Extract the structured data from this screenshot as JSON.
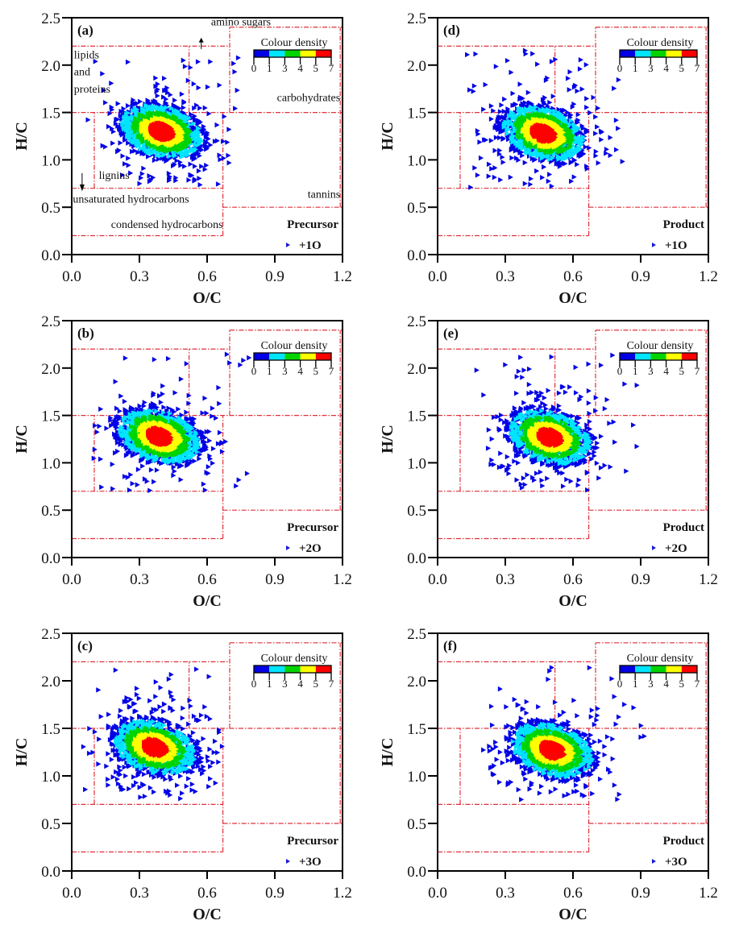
{
  "figure": {
    "colorbar": {
      "title": "Colour density",
      "ticks": [
        "0",
        "1",
        "3",
        "4",
        "5",
        "7"
      ],
      "colors": [
        "#0000e6",
        "#00e5ff",
        "#00d400",
        "#ffff00",
        "#ff0000"
      ]
    },
    "region_labels": {
      "amino_sugars": "amino sugars",
      "lipids": "lipids",
      "and": "and",
      "proteins": "proteins",
      "carbohydrates": "carbohydrates",
      "lignins": "lignins",
      "unsaturated": "unsaturated hydrocarbons",
      "condensed": "condensed hydrocarbons",
      "tannins": "tannins"
    },
    "region_color": "#e0303a",
    "marker_color": "#1a1ad6"
  },
  "chart_data": [
    {
      "type": "scatter",
      "panel": "(a)",
      "group": "Precursor",
      "series": "+1O",
      "xlabel": "O/C",
      "ylabel": "H/C",
      "xlim": [
        0,
        1.2
      ],
      "ylim": [
        0,
        2.5
      ],
      "xticks": [
        "0.0",
        "0.3",
        "0.6",
        "0.9",
        "1.2"
      ],
      "yticks": [
        "0.0",
        "0.5",
        "1.0",
        "1.5",
        "2.0",
        "2.5"
      ],
      "density_center": [
        0.4,
        1.3
      ],
      "x_range": [
        0.07,
        0.75
      ],
      "y_range": [
        0.7,
        2.15
      ],
      "show_region_labels": true
    },
    {
      "type": "scatter",
      "panel": "(b)",
      "group": "Precursor",
      "series": "+2O",
      "xlabel": "O/C",
      "ylabel": "H/C",
      "xlim": [
        0,
        1.2
      ],
      "ylim": [
        0,
        2.5
      ],
      "xticks": [
        "0.0",
        "0.3",
        "0.6",
        "0.9",
        "1.2"
      ],
      "yticks": [
        "0.0",
        "0.5",
        "1.0",
        "1.5",
        "2.0",
        "2.5"
      ],
      "density_center": [
        0.39,
        1.28
      ],
      "x_range": [
        0.07,
        0.8
      ],
      "y_range": [
        0.7,
        2.15
      ],
      "show_region_labels": false
    },
    {
      "type": "scatter",
      "panel": "(c)",
      "group": "Precursor",
      "series": "+3O",
      "xlabel": "O/C",
      "ylabel": "H/C",
      "xlim": [
        0,
        1.2
      ],
      "ylim": [
        0,
        2.5
      ],
      "xticks": [
        "0.0",
        "0.3",
        "0.6",
        "0.9",
        "1.2"
      ],
      "yticks": [
        "0.0",
        "0.5",
        "1.0",
        "1.5",
        "2.0",
        "2.5"
      ],
      "density_center": [
        0.37,
        1.3
      ],
      "x_range": [
        0.04,
        0.67
      ],
      "y_range": [
        0.75,
        2.15
      ],
      "show_region_labels": false
    },
    {
      "type": "scatter",
      "panel": "(d)",
      "group": "Product",
      "series": "+1O",
      "xlabel": "O/C",
      "ylabel": "H/C",
      "xlim": [
        0,
        1.2
      ],
      "ylim": [
        0,
        2.5
      ],
      "xticks": [
        "0.0",
        "0.3",
        "0.6",
        "0.9",
        "1.2"
      ],
      "yticks": [
        "0.0",
        "0.5",
        "1.0",
        "1.5",
        "2.0",
        "2.5"
      ],
      "density_center": [
        0.47,
        1.28
      ],
      "x_range": [
        0.12,
        0.82
      ],
      "y_range": [
        0.7,
        2.17
      ],
      "show_region_labels": false
    },
    {
      "type": "scatter",
      "panel": "(e)",
      "group": "Product",
      "series": "+2O",
      "xlabel": "O/C",
      "ylabel": "H/C",
      "xlim": [
        0,
        1.2
      ],
      "ylim": [
        0,
        2.5
      ],
      "xticks": [
        "0.0",
        "0.3",
        "0.6",
        "0.9",
        "1.2"
      ],
      "yticks": [
        "0.0",
        "0.5",
        "1.0",
        "1.5",
        "2.0",
        "2.5"
      ],
      "density_center": [
        0.5,
        1.27
      ],
      "x_range": [
        0.17,
        0.9
      ],
      "y_range": [
        0.7,
        2.15
      ],
      "show_region_labels": false
    },
    {
      "type": "scatter",
      "panel": "(f)",
      "group": "Product",
      "series": "+3O",
      "xlabel": "O/C",
      "ylabel": "H/C",
      "xlim": [
        0,
        1.2
      ],
      "ylim": [
        0,
        2.5
      ],
      "xticks": [
        "0.0",
        "0.3",
        "0.6",
        "0.9",
        "1.2"
      ],
      "yticks": [
        "0.0",
        "0.5",
        "1.0",
        "1.5",
        "2.0",
        "2.5"
      ],
      "density_center": [
        0.51,
        1.27
      ],
      "x_range": [
        0.17,
        1.0
      ],
      "y_range": [
        0.75,
        2.15
      ],
      "show_region_labels": false
    }
  ]
}
